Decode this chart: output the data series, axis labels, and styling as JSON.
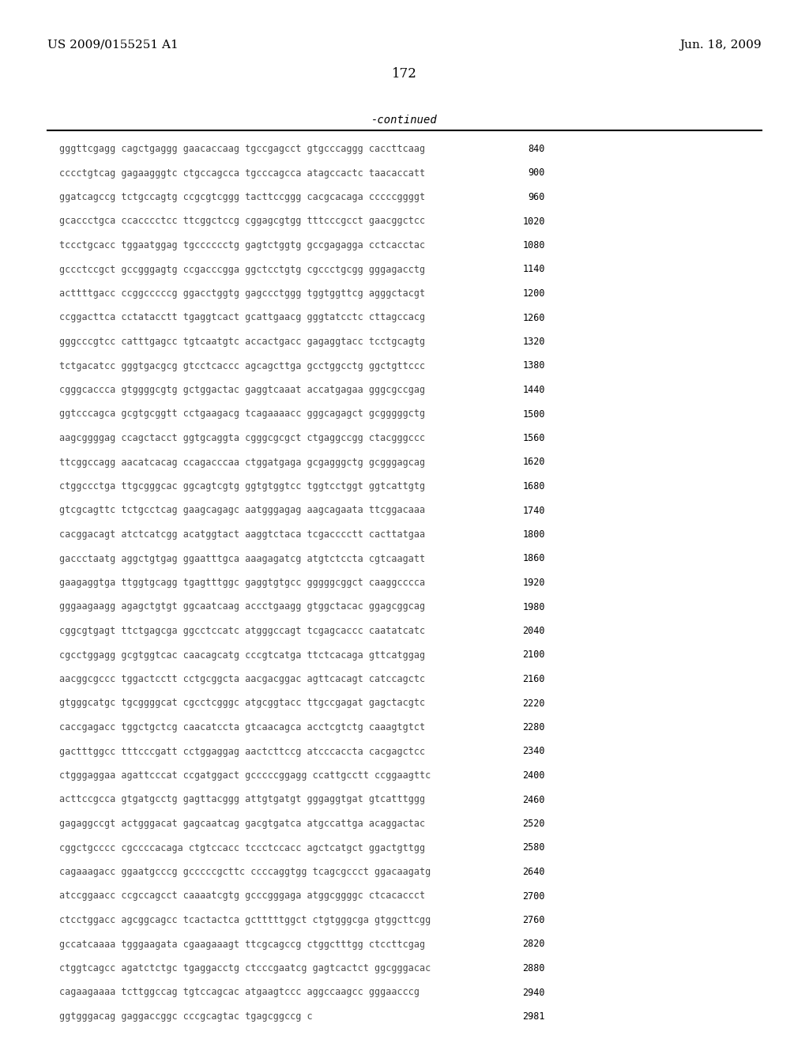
{
  "header_left": "US 2009/0155251 A1",
  "header_right": "Jun. 18, 2009",
  "page_number": "172",
  "continued_label": "-continued",
  "background_color": "#ffffff",
  "text_color": "#000000",
  "sequence_color": "#4a4a4a",
  "sequence_lines": [
    [
      "gggttcgagg cagctgaggg gaacaccaag tgccgagcct gtgcccaggg caccttcaag",
      "840"
    ],
    [
      "cccctgtcag gagaagggtc ctgccagcca tgcccagcca atagccactc taacaccatt",
      "900"
    ],
    [
      "ggatcagccg tctgccagtg ccgcgtcggg tacttccggg cacgcacaga cccccggggt",
      "960"
    ],
    [
      "gcaccctgca ccacccctcc ttcggctccg cggagcgtgg tttcccgcct gaacggctcc",
      "1020"
    ],
    [
      "tccctgcacc tggaatggag tgcccccctg gagtctggtg gccgagagga cctcacctac",
      "1080"
    ],
    [
      "gccctccgct gccgggagtg ccgacccgga ggctcctgtg cgccctgcgg gggagacctg",
      "1140"
    ],
    [
      "acttttgacc ccggcccccg ggacctggtg gagccctggg tggtggttcg agggctacgt",
      "1200"
    ],
    [
      "ccggacttca cctatacctt tgaggtcact gcattgaacg gggtatcctc cttagccacg",
      "1260"
    ],
    [
      "gggcccgtcc catttgagcc tgtcaatgtc accactgacc gagaggtacc tcctgcagtg",
      "1320"
    ],
    [
      "tctgacatcc gggtgacgcg gtcctcaccc agcagcttga gcctggcctg ggctgttccc",
      "1380"
    ],
    [
      "cgggcaccca gtggggcgtg gctggactac gaggtcaaat accatgagaa gggcgccgag",
      "1440"
    ],
    [
      "ggtcccagca gcgtgcggtt cctgaagacg tcagaaaacc gggcagagct gcgggggctg",
      "1500"
    ],
    [
      "aagcggggag ccagctacct ggtgcaggta cgggcgcgct ctgaggccgg ctacgggccc",
      "1560"
    ],
    [
      "ttcggccagg aacatcacag ccagacccaa ctggatgaga gcgagggctg gcgggagcag",
      "1620"
    ],
    [
      "ctggccctga ttgcgggcac ggcagtcgtg ggtgtggtcc tggtcctggt ggtcattgtg",
      "1680"
    ],
    [
      "gtcgcagttc tctgcctcag gaagcagagc aatgggagag aagcagaata ttcggacaaa",
      "1740"
    ],
    [
      "cacggacagt atctcatcgg acatggtact aaggtctaca tcgacccctt cacttatgaa",
      "1800"
    ],
    [
      "gaccctaatg aggctgtgag ggaatttgca aaagagatcg atgtctccta cgtcaagatt",
      "1860"
    ],
    [
      "gaagaggtga ttggtgcagg tgagtttggc gaggtgtgcc gggggcggct caaggcccca",
      "1920"
    ],
    [
      "gggaagaagg agagctgtgt ggcaatcaag accctgaagg gtggctacac ggagcggcag",
      "1980"
    ],
    [
      "cggcgtgagt ttctgagcga ggcctccatc atgggccagt tcgagcaccc caatatcatc",
      "2040"
    ],
    [
      "cgcctggagg gcgtggtcac caacagcatg cccgtcatga ttctcacaga gttcatggag",
      "2100"
    ],
    [
      "aacggcgccc tggactcctt cctgcggcta aacgacggac agttcacagt catccagctc",
      "2160"
    ],
    [
      "gtgggcatgc tgcggggcat cgcctcgggc atgcggtacc ttgccgagat gagctacgtc",
      "2220"
    ],
    [
      "caccgagacc tggctgctcg caacatccta gtcaacagca acctcgtctg caaagtgtct",
      "2280"
    ],
    [
      "gactttggcc tttcccgatt cctggaggag aactcttccg atcccaccta cacgagctcc",
      "2340"
    ],
    [
      "ctgggaggaa agattcccat ccgatggact gcccccggagg ccattgcctt ccggaagttc",
      "2400"
    ],
    [
      "acttccgcca gtgatgcctg gagttacggg attgtgatgt gggaggtgat gtcatttggg",
      "2460"
    ],
    [
      "gagaggccgt actgggacat gagcaatcag gacgtgatca atgccattga acaggactac",
      "2520"
    ],
    [
      "cggctgcccc cgccccacaga ctgtccacc tccctccacc agctcatgct ggactgttgg",
      "2580"
    ],
    [
      "cagaaagacc ggaatgcccg gcccccgcttc ccccaggtgg tcagcgccct ggacaagatg",
      "2640"
    ],
    [
      "atccggaacc ccgccagcct caaaatcgtg gcccgggaga atggcggggc ctcacaccct",
      "2700"
    ],
    [
      "ctcctggacc agcggcagcc tcactactca gctttttggct ctgtgggcga gtggcttcgg",
      "2760"
    ],
    [
      "gccatcaaaa tgggaagata cgaagaaagt ttcgcagccg ctggctttgg ctccttcgag",
      "2820"
    ],
    [
      "ctggtcagcc agatctctgc tgaggacctg ctcccgaatcg gagtcactct ggcgggacac",
      "2880"
    ],
    [
      "cagaagaaaa tcttggccag tgtccagcac atgaagtccc aggccaagcc gggaacccg",
      "2940"
    ],
    [
      "ggtgggacag gaggaccggc cccgcagtac tgagcggccg c",
      "2981"
    ]
  ]
}
